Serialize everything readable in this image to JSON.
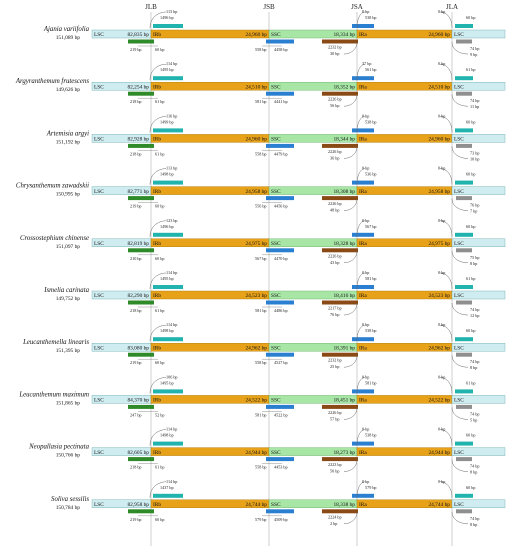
{
  "junctions": [
    "JLB",
    "JSB",
    "JSA",
    "JLA"
  ],
  "region_labels": {
    "lsc": "LSC",
    "irb": "IRb",
    "ssc": "SSC",
    "ira": "IRa"
  },
  "colors": {
    "lsc": "#cfecf0",
    "ir": "#e8a21a",
    "ssc": "#a8e6a6",
    "gene_teal": "#21b3ad",
    "gene_green": "#2f8a2a",
    "gene_blue": "#2a7fd0",
    "gene_brown": "#8a4a16",
    "gene_gray": "#8f8f8f"
  },
  "species": [
    {
      "name": "Ajania variifolia",
      "length": "151,089 bp",
      "lsc": "82,835 bp",
      "irb": "24,960 bp",
      "ssc": "18,334 bp",
      "ira": "24,960 bp",
      "top1": "113 bp",
      "top2": "1496 bp",
      "top3": "0 bp",
      "top4": "538 bp",
      "top5": "0 bp",
      "top6": "60 bp",
      "bot1": "219 bp",
      "bot2": "60 bp",
      "bot3": "558 bp",
      "bot4": "4458 bp",
      "bot5": "2232 bp",
      "bot6": "30 bp",
      "bot7": "74 bp",
      "bot8": "9 bp"
    },
    {
      "name": "Argyranthemum frutescens",
      "length": "149,626 bp",
      "lsc": "82,254 bp",
      "irb": "24,510 bp",
      "ssc": "18,352 bp",
      "ira": "24,510 bp",
      "top1": "114 bp",
      "top2": "1495 bp",
      "top3": "37 bp",
      "top4": "561 bp",
      "top5": "0 bp",
      "top6": "61 bp",
      "bot1": "218 bp",
      "bot2": "61 bp",
      "bot3": "581 bp",
      "bot4": "4441 bp",
      "bot5": "2226 bp",
      "bot6": "56 bp",
      "bot7": "74 bp",
      "bot8": "11 bp"
    },
    {
      "name": "Artemisia argyi",
      "length": "151,192 bp",
      "lsc": "82,928 bp",
      "irb": "24,960 bp",
      "ssc": "18,344 bp",
      "ira": "24,960 bp",
      "top1": "116 bp",
      "top2": "1499 bp",
      "top3": "0 bp",
      "top4": "538 bp",
      "top5": "0 bp",
      "top6": "60 bp",
      "bot1": "218 bp",
      "bot2": "61 bp",
      "bot3": "558 bp",
      "bot4": "4479 bp",
      "bot5": "2226 bp",
      "bot6": "36 bp",
      "bot7": "73 bp",
      "bot8": "10 bp"
    },
    {
      "name": "Chrysanthemum zawadskii",
      "length": "150,995 bp",
      "lsc": "82,771 bp",
      "irb": "24,958 bp",
      "ssc": "18,308 bp",
      "ira": "24,958 bp",
      "top1": "113 bp",
      "top2": "1498 bp",
      "top3": "0 bp",
      "top4": "536 bp",
      "top5": "0 bp",
      "top6": "60 bp",
      "bot1": "219 bp",
      "bot2": "60 bp",
      "bot3": "556 bp",
      "bot4": "4456 bp",
      "bot5": "2226 bp",
      "bot6": "48 bp",
      "bot7": "76 bp",
      "bot8": "7 bp"
    },
    {
      "name": "Crossostephium chinense",
      "length": "151,097 bp",
      "lsc": "82,819 bp",
      "irb": "24,975 bp",
      "ssc": "18,328 bp",
      "ira": "24,975 bp",
      "top1": "123 bp",
      "top2": "1496 bp",
      "top3": "0 bp",
      "top4": "567 bp",
      "top5": "0 bp",
      "top6": "60 bp",
      "bot1": "210 bp",
      "bot2": "60 bp",
      "bot3": "567 bp",
      "bot4": "4470 bp",
      "bot5": "2226 bp",
      "bot6": "43 bp",
      "bot7": "75 bp",
      "bot8": "8 bp"
    },
    {
      "name": "Ismelia carinata",
      "length": "149,752 bp",
      "lsc": "82,290 bp",
      "irb": "24,523 bp",
      "ssc": "18,416 bp",
      "ira": "24,523 bp",
      "top1": "114 bp",
      "top2": "1495 bp",
      "top3": "0 bp",
      "top4": "581 bp",
      "top5": "0 bp",
      "top6": "61 bp",
      "bot1": "218 bp",
      "bot2": "61 bp",
      "bot3": "581 bp",
      "bot4": "4486 bp",
      "bot5": "2217 bp",
      "bot6": "76 bp",
      "bot7": "74 bp",
      "bot8": "12 bp"
    },
    {
      "name": "Leucanthemella linearis",
      "length": "151,395 bp",
      "lsc": "83,080 bp",
      "irb": "24,962 bp",
      "ssc": "18,391 bp",
      "ira": "24,962 bp",
      "top1": "114 bp",
      "top2": "1498 bp",
      "top3": "0 bp",
      "top4": "538 bp",
      "top5": "0 bp",
      "top6": "60 bp",
      "bot1": "219 bp",
      "bot2": "60 bp",
      "bot3": "558 bp",
      "bot4": "4527 bp",
      "bot5": "2232 bp",
      "bot6": "25 bp",
      "bot7": "74 bp",
      "bot8": "8 bp"
    },
    {
      "name": "Leucanthemum maximum",
      "length": "151,865 bp",
      "lsc": "84,370 bp",
      "irb": "24,522 bp",
      "ssc": "18,451 bp",
      "ira": "24,522 bp",
      "top1": "106 bp",
      "top2": "1495 bp",
      "top3": "0 bp",
      "top4": "581 bp",
      "top5": "0 bp",
      "top6": "61 bp",
      "bot1": "247 bp",
      "bot2": "52 bp",
      "bot3": "581 bp",
      "bot4": "4522 bp",
      "bot5": "2226 bp",
      "bot6": "57 bp",
      "bot7": "74 bp",
      "bot8": "5 bp"
    },
    {
      "name": "Neopallasia pectinata",
      "length": "150,766 bp",
      "lsc": "82,605 bp",
      "irb": "24,944 bp",
      "ssc": "18,273 bp",
      "ira": "24,944 bp",
      "top1": "114 bp",
      "top2": "1498 bp",
      "top3": "0 bp",
      "top4": "538 bp",
      "top5": "0 bp",
      "top6": "60 bp",
      "bot1": "218 bp",
      "bot2": "61 bp",
      "bot3": "558 bp",
      "bot4": "4453 bp",
      "bot5": "2223 bp",
      "bot6": "50 bp",
      "bot7": "74 bp",
      "bot8": "8 bp"
    },
    {
      "name": "Soliva sessilis",
      "length": "150,784 bp",
      "lsc": "82,958 bp",
      "irb": "24,744 bp",
      "ssc": "18,338 bp",
      "ira": "24,744 bp",
      "top1": "114 bp",
      "top2": "1437 bp",
      "top3": "0 bp",
      "top4": "579 bp",
      "top5": "0 bp",
      "top6": "60 bp",
      "bot1": "219 bp",
      "bot2": "60 bp",
      "bot3": "579 bp",
      "bot4": "4509 bp",
      "bot5": "2224 bp",
      "bot6": "2 bp",
      "bot7": "74 bp",
      "bot8": "8 bp"
    }
  ]
}
